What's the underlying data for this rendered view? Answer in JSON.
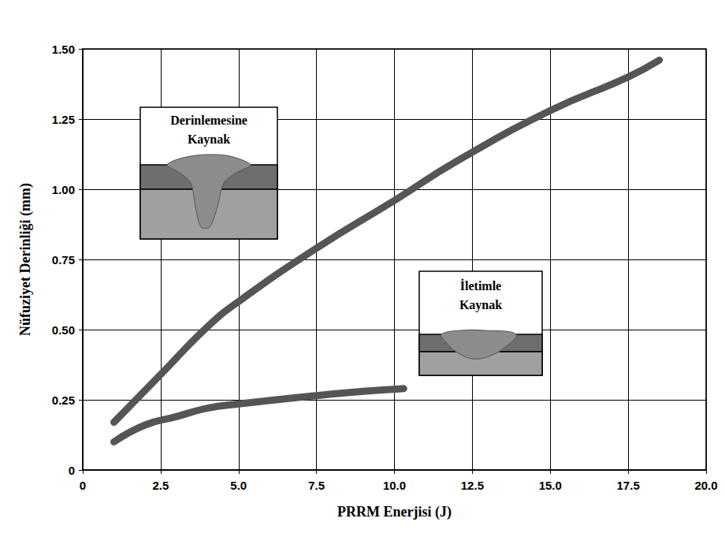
{
  "chart_data": {
    "type": "line",
    "x_label": "PRRM Enerjisi (J)",
    "y_label": "Nüfuziyet Derinliği (mm)",
    "series": [
      {
        "x": [
          1,
          2.5,
          4,
          5,
          7.5,
          10,
          12,
          15,
          17.5,
          18.5
        ],
        "values": [
          0.17,
          0.34,
          0.51,
          0.6,
          0.79,
          0.96,
          1.1,
          1.28,
          1.4,
          1.46
        ],
        "color": "#555555"
      },
      {
        "x": [
          1,
          2,
          3,
          4,
          5,
          7.5,
          9,
          10.3
        ],
        "values": [
          0.1,
          0.16,
          0.19,
          0.22,
          0.235,
          0.265,
          0.28,
          0.29
        ],
        "color": "#555555"
      }
    ],
    "annotations": [
      {
        "text": "Derinlemesine Kaynak"
      },
      {
        "text": "İletimle Kaynak"
      }
    ],
    "xlim": [
      0,
      20
    ],
    "xticks": [
      0,
      2.5,
      {
        "value": 5,
        "label": "5.0"
      },
      7.5,
      {
        "value": 10,
        "label": "10.0"
      },
      12.5,
      {
        "value": 15,
        "label": "15.0"
      },
      17.5,
      {
        "value": 20,
        "label": "20.0"
      }
    ],
    "ylim": [
      0,
      1.5
    ],
    "yticks": [
      0,
      0.25,
      {
        "value": 0.5,
        "label": "0.50"
      },
      0.75,
      {
        "value": 1,
        "label": "1.00"
      },
      1.25,
      {
        "value": 1.5,
        "label": "1.50"
      }
    ],
    "grid": true
  }
}
